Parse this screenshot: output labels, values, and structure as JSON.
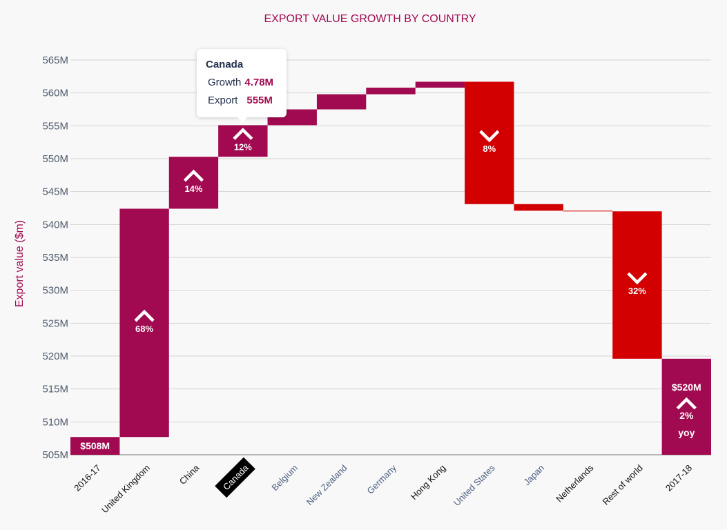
{
  "chart_data": {
    "type": "waterfall",
    "title": "EXPORT VALUE GROWTH BY COUNTRY",
    "ylabel": "Export value ($m)",
    "ylim": [
      505,
      565
    ],
    "yticks": [
      505,
      510,
      515,
      520,
      525,
      530,
      535,
      540,
      545,
      550,
      555,
      560,
      565
    ],
    "ytick_labels": [
      "505M",
      "510M",
      "515M",
      "520M",
      "525M",
      "530M",
      "535M",
      "540M",
      "545M",
      "550M",
      "555M",
      "560M",
      "565M"
    ],
    "grid": true,
    "colors": {
      "increase": "#a10a50",
      "decrease": "#d20000",
      "title": "#a10a50",
      "axis_label": "#a10a50"
    },
    "bars": [
      {
        "category": "2016-17",
        "kind": "total",
        "start": 505,
        "end": 507.7,
        "label": "$508M"
      },
      {
        "category": "United Kingdom",
        "kind": "increase",
        "start": 507.7,
        "end": 542.4,
        "label": "68%"
      },
      {
        "category": "China",
        "kind": "increase",
        "start": 542.4,
        "end": 550.3,
        "label": "14%"
      },
      {
        "category": "Canada",
        "kind": "increase",
        "start": 550.3,
        "end": 555.1,
        "label": "12%"
      },
      {
        "category": "Belgium",
        "kind": "increase",
        "start": 555.1,
        "end": 557.5,
        "label": ""
      },
      {
        "category": "New Zealand",
        "kind": "increase",
        "start": 557.5,
        "end": 559.8,
        "label": ""
      },
      {
        "category": "Germany",
        "kind": "increase",
        "start": 559.8,
        "end": 560.8,
        "label": ""
      },
      {
        "category": "Hong Kong",
        "kind": "increase",
        "start": 560.8,
        "end": 561.7,
        "label": ""
      },
      {
        "category": "United States",
        "kind": "decrease",
        "start": 561.7,
        "end": 543.1,
        "label": "8%"
      },
      {
        "category": "Japan",
        "kind": "decrease",
        "start": 543.1,
        "end": 542.1,
        "label": ""
      },
      {
        "category": "Netherlands",
        "kind": "decrease",
        "start": 542.1,
        "end": 542.0,
        "label": ""
      },
      {
        "category": "Rest of world",
        "kind": "decrease",
        "start": 542.0,
        "end": 519.6,
        "label": "32%"
      },
      {
        "category": "2017-18",
        "kind": "total",
        "start": 505,
        "end": 519.6,
        "label": "$520M",
        "label2": "2%",
        "label3": "yoy"
      }
    ],
    "highlighted_category": "Canada",
    "category_label_colors": [
      "#111111",
      "#111111",
      "#111111",
      "#ffffff",
      "#4a5e7e",
      "#4a5e7e",
      "#4a5e7e",
      "#111111",
      "#4a5e7e",
      "#4a5e7e",
      "#111111",
      "#111111",
      "#111111"
    ],
    "tooltip": {
      "title": "Canada",
      "growth_label": "Growth",
      "growth_value": "4.78M",
      "export_label": "Export",
      "export_value": "555M"
    }
  }
}
